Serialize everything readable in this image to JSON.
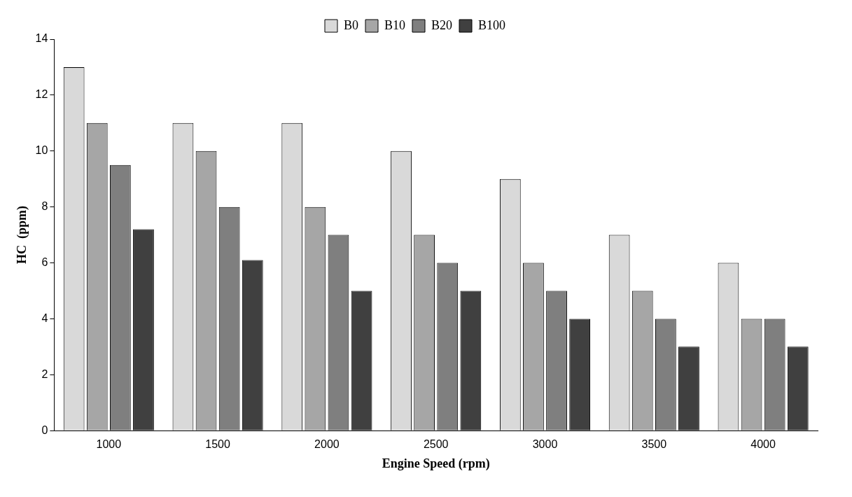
{
  "chart_data": {
    "type": "bar",
    "xlabel": "Engine Speed (rpm)",
    "ylabel": "HC  (ppm)",
    "categories": [
      "1000",
      "1500",
      "2000",
      "2500",
      "3000",
      "3500",
      "4000"
    ],
    "series": [
      {
        "name": "B0",
        "color": "#d9d9d9",
        "values": [
          13,
          11,
          11,
          10,
          9,
          7,
          6
        ]
      },
      {
        "name": "B10",
        "color": "#a6a6a6",
        "values": [
          11,
          10,
          8,
          7,
          6,
          5,
          4
        ]
      },
      {
        "name": "B20",
        "color": "#7f7f7f",
        "values": [
          9.5,
          8,
          7,
          6,
          5,
          4,
          4
        ]
      },
      {
        "name": "B100",
        "color": "#404040",
        "values": [
          7.2,
          6.1,
          5,
          5,
          4,
          3,
          3
        ]
      }
    ],
    "ylim": [
      0,
      14
    ],
    "yticks": [
      0,
      2,
      4,
      6,
      8,
      10,
      12,
      14
    ],
    "grid": false,
    "legend": "top"
  }
}
